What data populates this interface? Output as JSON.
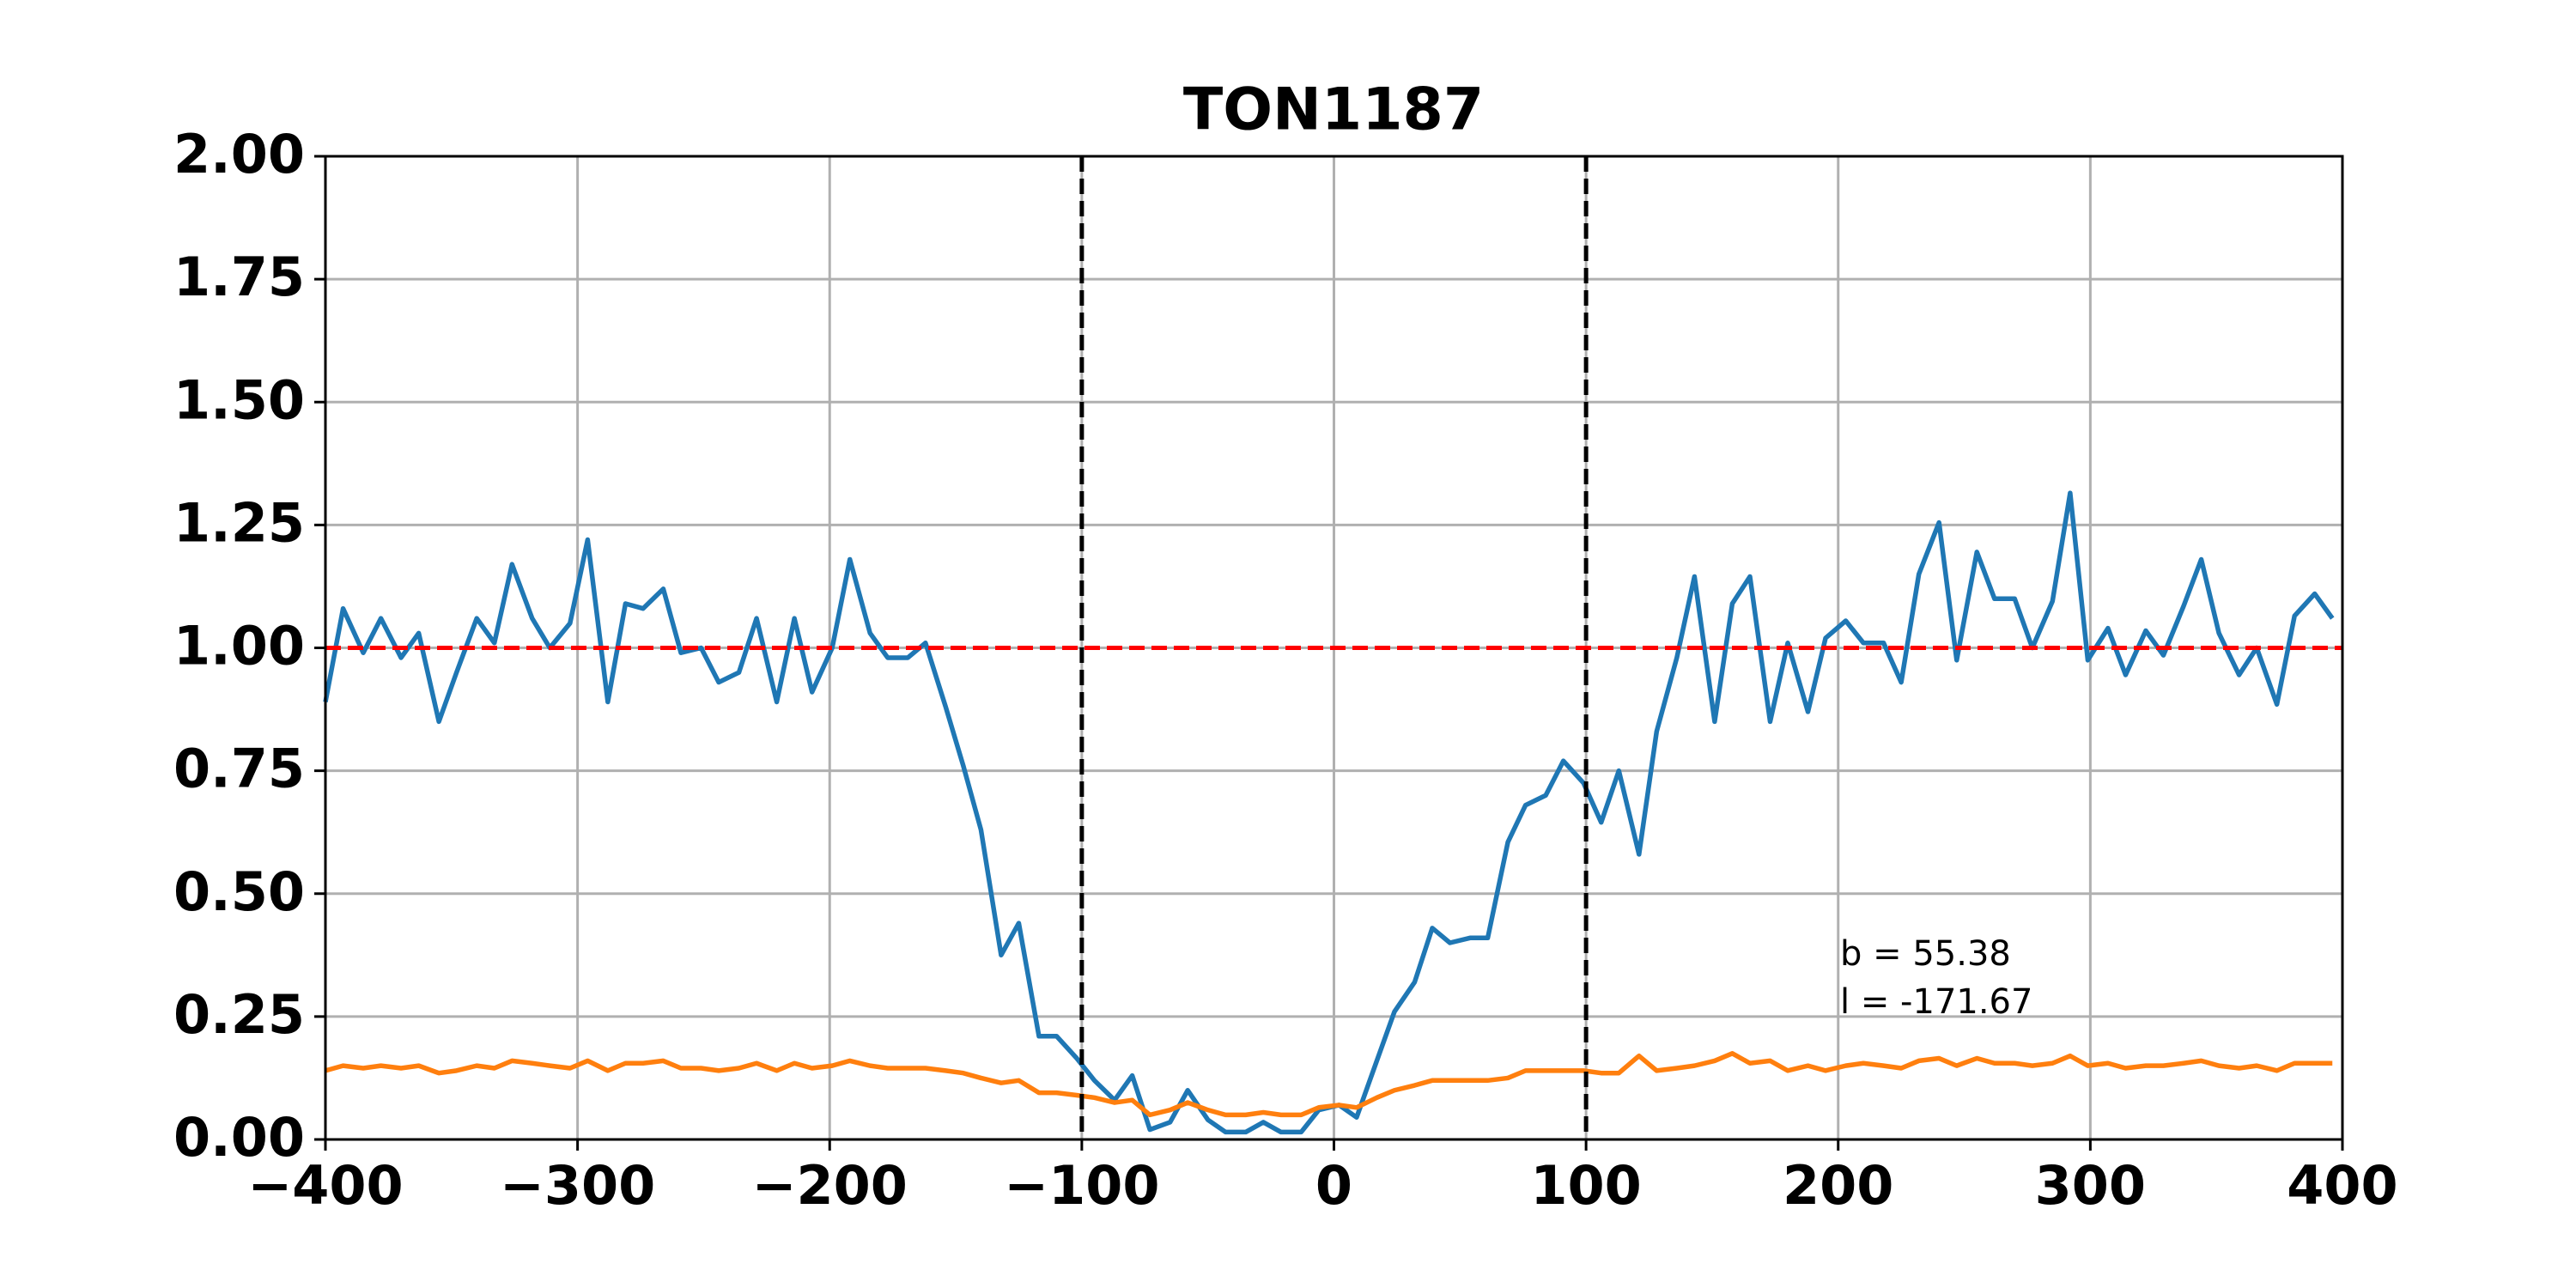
{
  "chart_data": {
    "type": "line",
    "title": "TON1187",
    "x": [
      -400,
      -393,
      -385,
      -378,
      -370,
      -363,
      -355,
      -348,
      -340,
      -333,
      -326,
      -318,
      -311,
      -303,
      -296,
      -288,
      -281,
      -274,
      -266,
      -259,
      -251,
      -244,
      -236,
      -229,
      -221,
      -214,
      -207,
      -199,
      -192,
      -184,
      -177,
      -169,
      -162,
      -154,
      -147,
      -140,
      -132,
      -125,
      -117,
      -110,
      -102,
      -95,
      -87,
      -80,
      -73,
      -65,
      -58,
      -50,
      -43,
      -35,
      -28,
      -21,
      -13,
      -6,
      2,
      9,
      17,
      24,
      32,
      39,
      46,
      54,
      61,
      69,
      76,
      84,
      91,
      99,
      106,
      113,
      121,
      128,
      136,
      143,
      151,
      158,
      165,
      173,
      180,
      188,
      195,
      203,
      210,
      218,
      225,
      232,
      240,
      247,
      255,
      262,
      270,
      277,
      285,
      292,
      299,
      307,
      314,
      322,
      329,
      337,
      344,
      351,
      359,
      366,
      374,
      381,
      389,
      396
    ],
    "series": [
      {
        "color": "#1f77b4",
        "values": [
          0.89,
          1.08,
          0.99,
          1.06,
          0.98,
          1.03,
          0.85,
          0.95,
          1.06,
          1.01,
          1.17,
          1.06,
          1.0,
          1.05,
          1.22,
          0.89,
          1.09,
          1.08,
          1.12,
          0.99,
          1.0,
          0.93,
          0.95,
          1.06,
          0.89,
          1.06,
          0.91,
          1.0,
          1.18,
          1.03,
          0.98,
          0.98,
          1.01,
          0.88,
          0.76,
          0.63,
          0.375,
          0.44,
          0.21,
          0.21,
          0.165,
          0.12,
          0.08,
          0.13,
          0.02,
          0.035,
          0.1,
          0.04,
          0.015,
          0.015,
          0.035,
          0.015,
          0.015,
          0.06,
          0.07,
          0.045,
          0.16,
          0.26,
          0.32,
          0.43,
          0.4,
          0.41,
          0.41,
          0.605,
          0.68,
          0.7,
          0.77,
          0.725,
          0.645,
          0.75,
          0.58,
          0.83,
          0.98,
          1.145,
          0.85,
          1.09,
          1.145,
          0.85,
          1.01,
          0.87,
          1.02,
          1.055,
          1.01,
          1.01,
          0.93,
          1.15,
          1.255,
          0.975,
          1.195,
          1.1,
          1.1,
          1.0,
          1.095,
          1.315,
          0.975,
          1.04,
          0.945,
          1.035,
          0.985,
          1.085,
          1.18,
          1.03,
          0.945,
          1.0,
          0.885,
          1.065,
          1.11,
          1.06
        ]
      },
      {
        "color": "#ff7f0e",
        "values": [
          0.14,
          0.15,
          0.145,
          0.15,
          0.145,
          0.15,
          0.135,
          0.14,
          0.15,
          0.145,
          0.16,
          0.155,
          0.15,
          0.145,
          0.16,
          0.14,
          0.155,
          0.155,
          0.16,
          0.145,
          0.145,
          0.14,
          0.145,
          0.155,
          0.14,
          0.155,
          0.145,
          0.15,
          0.16,
          0.15,
          0.145,
          0.145,
          0.145,
          0.14,
          0.135,
          0.125,
          0.115,
          0.12,
          0.095,
          0.095,
          0.09,
          0.085,
          0.075,
          0.08,
          0.05,
          0.06,
          0.075,
          0.06,
          0.05,
          0.05,
          0.055,
          0.05,
          0.05,
          0.065,
          0.07,
          0.065,
          0.085,
          0.1,
          0.11,
          0.12,
          0.12,
          0.12,
          0.12,
          0.125,
          0.14,
          0.14,
          0.14,
          0.14,
          0.135,
          0.135,
          0.17,
          0.14,
          0.145,
          0.15,
          0.16,
          0.175,
          0.155,
          0.16,
          0.14,
          0.15,
          0.14,
          0.15,
          0.155,
          0.15,
          0.145,
          0.16,
          0.165,
          0.15,
          0.165,
          0.155,
          0.155,
          0.15,
          0.155,
          0.17,
          0.15,
          0.155,
          0.145,
          0.15,
          0.15,
          0.155,
          0.16,
          0.15,
          0.145,
          0.15,
          0.14,
          0.155,
          0.155,
          0.155
        ]
      }
    ],
    "hline": {
      "value": 1,
      "color": "#ff0000"
    },
    "vlines": {
      "values": [
        -100,
        100
      ],
      "color": "#000000"
    },
    "annotations": [
      "b = 55.38",
      "l = -171.67"
    ],
    "xlim": [
      -400,
      400
    ],
    "ylim": [
      0,
      2
    ],
    "xticks": [
      {
        "value": -400,
        "label": "−400"
      },
      {
        "value": -300,
        "label": "−300"
      },
      {
        "value": -200,
        "label": "−200"
      },
      {
        "value": -100,
        "label": "−100"
      },
      0,
      100,
      200,
      300,
      400
    ],
    "yticks": [
      {
        "value": 0,
        "label": "0.00"
      },
      {
        "value": 0.25,
        "label": "0.25"
      },
      {
        "value": 0.5,
        "label": "0.50"
      },
      {
        "value": 0.75,
        "label": "0.75"
      },
      {
        "value": 1,
        "label": "1.00"
      },
      {
        "value": 1.25,
        "label": "1.25"
      },
      {
        "value": 1.5,
        "label": "1.50"
      },
      {
        "value": 1.75,
        "label": "1.75"
      },
      {
        "value": 2,
        "label": "2.00"
      }
    ],
    "grid": true
  }
}
